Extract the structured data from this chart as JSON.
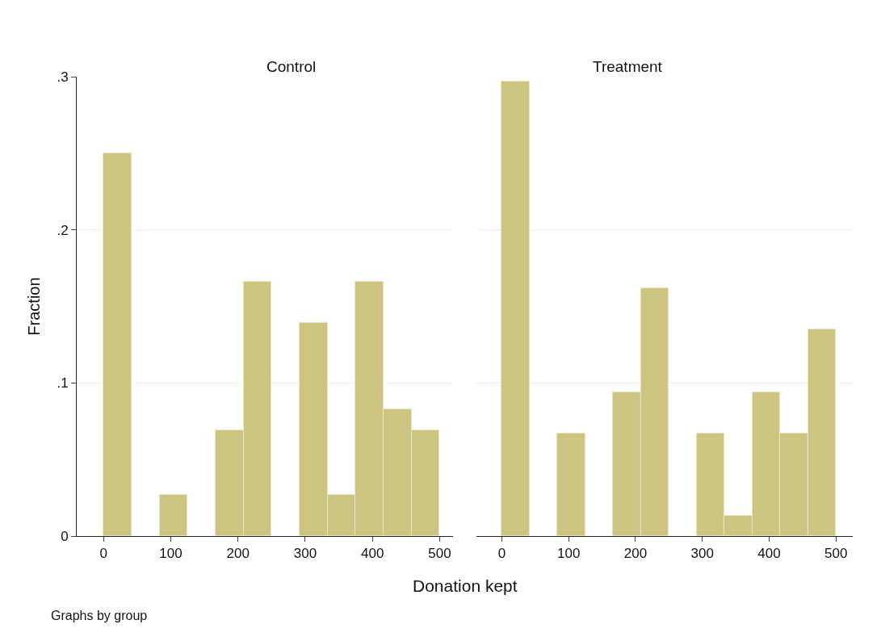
{
  "chart_data": [
    {
      "type": "histogram",
      "title": "Control",
      "xlabel": "Donation kept",
      "ylabel": "Fraction",
      "annotations": [
        "Graphs by group"
      ],
      "bins": [
        0,
        41.67,
        83.33,
        125,
        166.67,
        208.33,
        250,
        291.67,
        333.33,
        375,
        416.67,
        458.33,
        500
      ],
      "values": [
        0.25,
        0,
        0.027,
        0,
        0.069,
        0.166,
        0,
        0.139,
        0.027,
        0.166,
        0.083,
        0.069
      ],
      "color": "#cdc482",
      "xlim": [
        -40,
        520
      ],
      "xticks": [
        0,
        100,
        200,
        300,
        400,
        500
      ],
      "ylim": [
        0,
        0.3
      ],
      "yticks": [
        {
          "value": 0,
          "label": "0"
        },
        {
          "value": 0.1,
          "label": ".1"
        },
        {
          "value": 0.2,
          "label": ".2"
        },
        {
          "value": 0.3,
          "label": ".3"
        }
      ],
      "grid": "y"
    },
    {
      "type": "histogram",
      "title": "Treatment",
      "bins": [
        0,
        41.67,
        83.33,
        125,
        166.67,
        208.33,
        250,
        291.67,
        333.33,
        375,
        416.67,
        458.33,
        500
      ],
      "values": [
        0.297,
        0,
        0.067,
        0,
        0.094,
        0.162,
        0,
        0.067,
        0.013,
        0.094,
        0.067,
        0.135
      ],
      "color": "#cdc482",
      "xlim": [
        -38,
        525
      ],
      "xticks": [
        0,
        100,
        200,
        300,
        400,
        500
      ],
      "ylim": [
        0,
        0.3
      ],
      "yticks": [
        {
          "value": 0,
          "label": null
        },
        {
          "value": 0.1,
          "label": null
        },
        {
          "value": 0.2,
          "label": null
        },
        {
          "value": 0.3,
          "label": null
        }
      ],
      "grid": "y",
      "tick_labels": "x"
    }
  ]
}
